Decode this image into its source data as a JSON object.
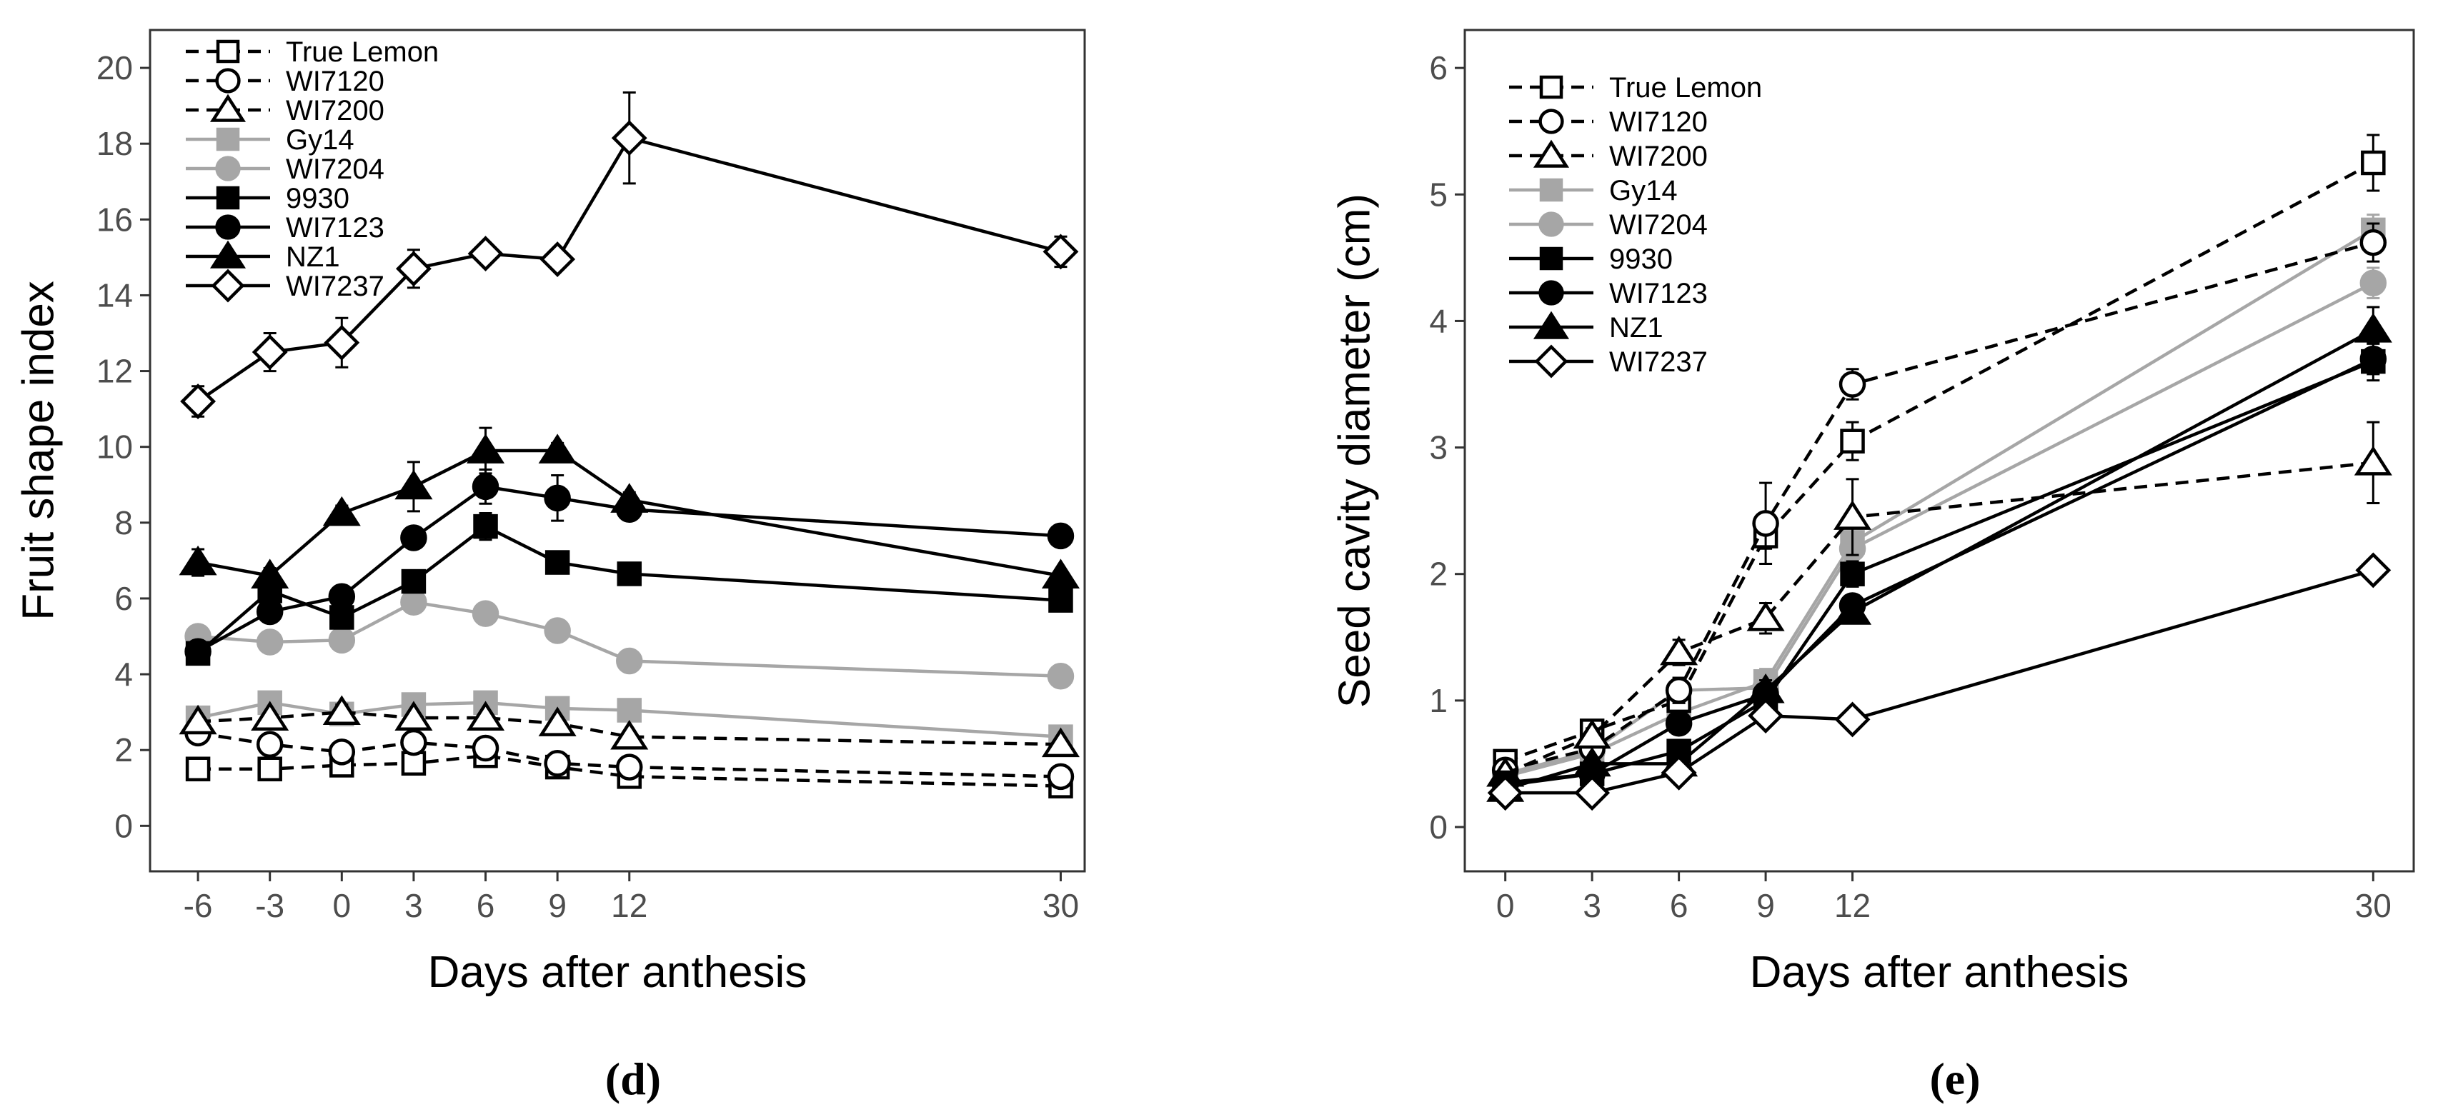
{
  "chart_data": [
    {
      "type": "line",
      "panel": "d",
      "panel_label": "(d)",
      "title": "",
      "xlabel": "Days after anthesis",
      "ylabel": "Fruit shape index",
      "x": [
        -6,
        -3,
        0,
        3,
        6,
        9,
        12,
        30
      ],
      "x_ticks": [
        "-6",
        "-3",
        "0",
        "3",
        "6",
        "9",
        "12",
        "30"
      ],
      "xlim": [
        -8,
        31
      ],
      "ylim": [
        -1.2,
        21
      ],
      "y_ticks": [
        "0",
        "2",
        "4",
        "6",
        "8",
        "10",
        "12",
        "14",
        "16",
        "18",
        "20"
      ],
      "legend_position": "top-left",
      "series": [
        {
          "name": "True Lemon",
          "values": [
            1.5,
            1.5,
            1.6,
            1.65,
            1.85,
            1.55,
            1.3,
            1.05
          ],
          "err": [
            0.12,
            0.1,
            0.12,
            0.12,
            0.15,
            0.12,
            0.12,
            0.08
          ]
        },
        {
          "name": "WI7120",
          "values": [
            2.45,
            2.15,
            1.95,
            2.2,
            2.05,
            1.65,
            1.55,
            1.3
          ],
          "err": [
            0.15,
            0.15,
            0.15,
            0.15,
            0.15,
            0.12,
            0.12,
            0.1
          ]
        },
        {
          "name": "WI7200",
          "values": [
            2.75,
            2.85,
            3.0,
            2.85,
            2.85,
            2.7,
            2.35,
            2.15
          ],
          "err": [
            0.15,
            0.15,
            0.2,
            0.15,
            0.15,
            0.15,
            0.15,
            0.12
          ]
        },
        {
          "name": "Gy14",
          "values": [
            2.85,
            3.25,
            2.95,
            3.2,
            3.25,
            3.1,
            3.05,
            2.35
          ],
          "err": [
            0.15,
            0.15,
            0.15,
            0.15,
            0.15,
            0.15,
            0.15,
            0.12
          ]
        },
        {
          "name": "WI7204",
          "values": [
            5.0,
            4.85,
            4.9,
            5.9,
            5.6,
            5.15,
            4.35,
            3.95
          ],
          "err": [
            0.15,
            0.15,
            0.15,
            0.25,
            0.15,
            0.25,
            0.15,
            0.12
          ]
        },
        {
          "name": "9930",
          "values": [
            4.55,
            6.2,
            5.5,
            6.45,
            7.9,
            6.95,
            6.65,
            5.95
          ],
          "err": [
            0.15,
            0.2,
            0.2,
            0.25,
            0.35,
            0.15,
            0.15,
            0.12
          ]
        },
        {
          "name": "WI7123",
          "values": [
            4.6,
            5.65,
            6.05,
            7.6,
            8.95,
            8.65,
            8.35,
            7.65
          ],
          "err": [
            0.15,
            0.25,
            0.25,
            0.2,
            0.45,
            0.6,
            0.2,
            0.12
          ]
        },
        {
          "name": "NZ1",
          "values": [
            6.95,
            6.6,
            8.25,
            8.95,
            9.9,
            9.9,
            8.6,
            6.6
          ],
          "err": [
            0.35,
            0.2,
            0.2,
            0.65,
            0.6,
            0.2,
            0.2,
            0.15
          ]
        },
        {
          "name": "WI7237",
          "values": [
            11.2,
            12.5,
            12.75,
            14.7,
            15.1,
            14.95,
            18.15,
            15.15
          ],
          "err": [
            0.4,
            0.5,
            0.65,
            0.5,
            0.2,
            0.2,
            1.2,
            0.4
          ]
        }
      ]
    },
    {
      "type": "line",
      "panel": "e",
      "panel_label": "(e)",
      "title": "",
      "xlabel": "Days after anthesis",
      "ylabel": "Seed cavity diameter (cm)",
      "x": [
        0,
        3,
        6,
        9,
        12,
        30
      ],
      "x_ticks": [
        "0",
        "3",
        "6",
        "9",
        "12",
        "30"
      ],
      "xlim": [
        -1.4,
        31.4
      ],
      "ylim": [
        -0.35,
        6.3
      ],
      "y_ticks": [
        "0",
        "1",
        "2",
        "3",
        "4",
        "5",
        "6"
      ],
      "legend_position": "top-left",
      "series": [
        {
          "name": "True Lemon",
          "values": [
            0.52,
            0.76,
            1.0,
            2.3,
            3.05,
            5.25
          ],
          "err": [
            0.05,
            0.06,
            0.1,
            0.1,
            0.15,
            0.22
          ]
        },
        {
          "name": "WI7120",
          "values": [
            0.45,
            0.62,
            1.08,
            2.4,
            3.5,
            4.62
          ],
          "err": [
            0.05,
            0.06,
            0.1,
            0.32,
            0.12,
            0.15
          ]
        },
        {
          "name": "WI7200",
          "values": [
            0.42,
            0.72,
            1.38,
            1.65,
            2.45,
            2.88
          ],
          "err": [
            0.05,
            0.06,
            0.1,
            0.12,
            0.3,
            0.32
          ]
        },
        {
          "name": "Gy14",
          "values": [
            0.4,
            0.58,
            0.9,
            1.15,
            2.25,
            4.72
          ],
          "err": [
            0.04,
            0.05,
            0.08,
            0.1,
            0.12,
            0.12
          ]
        },
        {
          "name": "WI7204",
          "values": [
            0.42,
            0.6,
            1.08,
            1.1,
            2.2,
            4.3
          ],
          "err": [
            0.04,
            0.05,
            0.1,
            0.1,
            0.1,
            0.12
          ]
        },
        {
          "name": "9930",
          "values": [
            0.35,
            0.42,
            0.6,
            1.0,
            2.0,
            3.68
          ],
          "err": [
            0.04,
            0.05,
            0.06,
            0.08,
            0.1,
            0.15
          ]
        },
        {
          "name": "WI7123",
          "values": [
            0.33,
            0.42,
            0.82,
            1.05,
            1.75,
            3.7
          ],
          "err": [
            0.04,
            0.05,
            0.06,
            0.08,
            0.08,
            0.12
          ]
        },
        {
          "name": "NZ1",
          "values": [
            0.3,
            0.5,
            0.5,
            1.08,
            1.7,
            3.93
          ],
          "err": [
            0.04,
            0.05,
            0.06,
            0.08,
            0.08,
            0.18
          ]
        },
        {
          "name": "WI7237",
          "values": [
            0.27,
            0.27,
            0.43,
            0.88,
            0.85,
            2.03
          ],
          "err": [
            0.03,
            0.03,
            0.04,
            0.05,
            0.05,
            0.06
          ]
        }
      ]
    }
  ],
  "series_styles": {
    "True Lemon": {
      "marker": "square",
      "fill": "#ffffff",
      "stroke": "#000000",
      "dash": "dashed"
    },
    "WI7120": {
      "marker": "circle",
      "fill": "#ffffff",
      "stroke": "#000000",
      "dash": "dashed"
    },
    "WI7200": {
      "marker": "triangle",
      "fill": "#ffffff",
      "stroke": "#000000",
      "dash": "dashed"
    },
    "Gy14": {
      "marker": "square",
      "fill": "#a6a6a6",
      "stroke": "#a6a6a6",
      "dash": "solid"
    },
    "WI7204": {
      "marker": "circle",
      "fill": "#a6a6a6",
      "stroke": "#a6a6a6",
      "dash": "solid"
    },
    "9930": {
      "marker": "square",
      "fill": "#000000",
      "stroke": "#000000",
      "dash": "solid"
    },
    "WI7123": {
      "marker": "circle",
      "fill": "#000000",
      "stroke": "#000000",
      "dash": "solid"
    },
    "NZ1": {
      "marker": "triangle",
      "fill": "#000000",
      "stroke": "#000000",
      "dash": "solid"
    },
    "WI7237": {
      "marker": "diamond",
      "fill": "#ffffff",
      "stroke": "#000000",
      "dash": "solid"
    }
  }
}
